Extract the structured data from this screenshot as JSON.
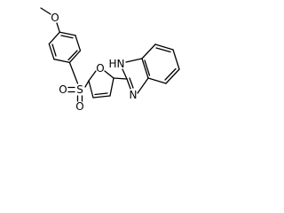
{
  "atoms": {
    "methoxy_oxygen": "O",
    "sulfur": "S",
    "sulfonyl_oxygen_left": "O",
    "sulfonyl_oxygen_bottom": "O",
    "furan_oxygen": "O",
    "imidazole_nh_h": "H",
    "imidazole_nh_n": "N",
    "imidazole_n": "N"
  }
}
